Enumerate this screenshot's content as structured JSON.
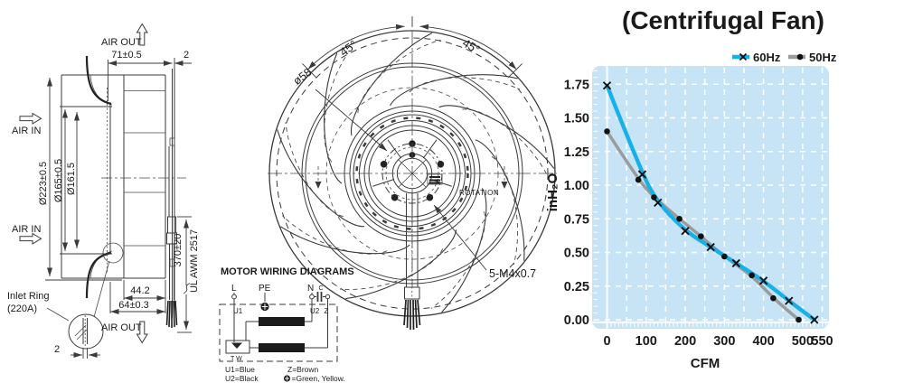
{
  "side_view": {
    "air_out_top": "AIR OUT",
    "air_in_upper": "AIR IN",
    "air_in_lower": "AIR IN",
    "air_out_bottom": "AIR OUT",
    "dim_depth": "71±0.5",
    "dim_plate_thickness": "2",
    "dim_outer_dia": "Ø223±0.5",
    "dim_mid_dia": "Ø165±0.5",
    "dim_inner_dia": "Ø161.5",
    "dim_blade_width": "44.2",
    "dim_scroll_width": "64±0.3",
    "dim_cable_length": "370±20",
    "cable_spec": "UL AWM 2517",
    "inlet_ring_line1": "Inlet Ring",
    "inlet_ring_line2": "(220A)",
    "dim_ring_gap": "2"
  },
  "front_view": {
    "angle_left": "45°",
    "angle_right": "45°",
    "dim_pilot_dia": "ø58",
    "rotation_label": "ROTATION",
    "screw_label": "5-M4x0.7"
  },
  "wiring": {
    "title": "MOTOR WIRING DIAGRAMS",
    "terminal_l": "L",
    "terminal_pe": "PE",
    "terminal_n": "N",
    "capacitor": "C",
    "tap_u1": "U1",
    "tap_u2": "U2",
    "tap_z": "Z",
    "thermal_switch": "T W",
    "legend_u1": "U1=Blue",
    "legend_u2": "U2=Black",
    "legend_z": "Z=Brown",
    "legend_earth": "=Green, Yellow."
  },
  "chart_data": {
    "type": "line",
    "title": "(Centrifugal Fan)",
    "xlabel": "CFM",
    "ylabel": "inH₂O",
    "xlim": [
      0,
      565
    ],
    "ylim": [
      0,
      1.88
    ],
    "x_ticks": [
      0,
      100,
      200,
      300,
      400,
      500,
      550
    ],
    "y_ticks": [
      "0.00",
      "0.25",
      "0.50",
      "0.75",
      "1.00",
      "1.25",
      "1.50",
      "1.75"
    ],
    "x_grid_step": 50,
    "x_grid_max": 550,
    "y_grid_step": 0.25,
    "y_grid_max": 1.75,
    "grid": "white dashed on light blue",
    "plot_bg_color": "#c6e4f6",
    "grid_color": "#ffffff",
    "legend_position": "top-right",
    "series": [
      {
        "name": "60Hz",
        "color": "#17b1e8",
        "marker": "x",
        "line_width": 4.4,
        "points": [
          [
            0,
            1.74
          ],
          [
            90,
            1.08
          ],
          [
            130,
            0.87
          ],
          [
            200,
            0.66
          ],
          [
            265,
            0.54
          ],
          [
            330,
            0.42
          ],
          [
            400,
            0.29
          ],
          [
            465,
            0.14
          ],
          [
            530,
            0.0
          ]
        ]
      },
      {
        "name": "50Hz",
        "color": "#9b9b9b",
        "marker": "circle",
        "line_width": 3.5,
        "points": [
          [
            0,
            1.4
          ],
          [
            80,
            1.04
          ],
          [
            120,
            0.91
          ],
          [
            185,
            0.75
          ],
          [
            240,
            0.62
          ],
          [
            300,
            0.47
          ],
          [
            370,
            0.33
          ],
          [
            425,
            0.16
          ],
          [
            490,
            0.0
          ]
        ]
      }
    ]
  }
}
